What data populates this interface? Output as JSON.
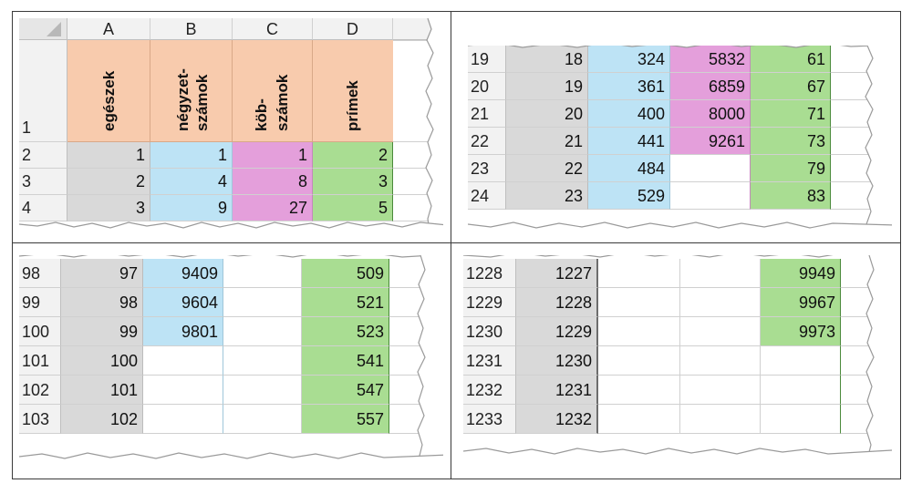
{
  "colors": {
    "header_orange": "#f8cbad",
    "gray": "#d9d9d9",
    "blue": "#bde3f5",
    "pink": "#e49fdb",
    "green": "#a9dd92"
  },
  "columns": [
    "A",
    "B",
    "C",
    "D"
  ],
  "headers": {
    "row": "1",
    "egeszek": "egészek",
    "negyzet_1": "négyzet-",
    "negyzet_2": "számok",
    "kob_1": "köb-",
    "kob_2": "számok",
    "primek": "prímek"
  },
  "panel1_rows": [
    {
      "row": "2",
      "a": "1",
      "b": "1",
      "c": "1",
      "d": "2"
    },
    {
      "row": "3",
      "a": "2",
      "b": "4",
      "c": "8",
      "d": "3"
    },
    {
      "row": "4",
      "a": "3",
      "b": "9",
      "c": "27",
      "d": "5"
    }
  ],
  "panel2_rows": [
    {
      "row": "19",
      "a": "18",
      "b": "324",
      "c": "5832",
      "d": "61"
    },
    {
      "row": "20",
      "a": "19",
      "b": "361",
      "c": "6859",
      "d": "67"
    },
    {
      "row": "21",
      "a": "20",
      "b": "400",
      "c": "8000",
      "d": "71"
    },
    {
      "row": "22",
      "a": "21",
      "b": "441",
      "c": "9261",
      "d": "73"
    },
    {
      "row": "23",
      "a": "22",
      "b": "484",
      "c": "",
      "d": "79"
    },
    {
      "row": "24",
      "a": "23",
      "b": "529",
      "c": "",
      "d": "83"
    }
  ],
  "panel3_rows": [
    {
      "row": "98",
      "a": "97",
      "b": "9409",
      "d": "509"
    },
    {
      "row": "99",
      "a": "98",
      "b": "9604",
      "d": "521"
    },
    {
      "row": "100",
      "a": "99",
      "b": "9801",
      "d": "523"
    },
    {
      "row": "101",
      "a": "100",
      "b": "",
      "d": "541"
    },
    {
      "row": "102",
      "a": "101",
      "b": "",
      "d": "547"
    },
    {
      "row": "103",
      "a": "102",
      "b": "",
      "d": "557"
    }
  ],
  "panel4_rows": [
    {
      "row": "1228",
      "a": "1227",
      "d": "9949"
    },
    {
      "row": "1229",
      "a": "1228",
      "d": "9967"
    },
    {
      "row": "1230",
      "a": "1229",
      "d": "9973"
    },
    {
      "row": "1231",
      "a": "1230",
      "d": ""
    },
    {
      "row": "1232",
      "a": "1231",
      "d": ""
    },
    {
      "row": "1233",
      "a": "1232",
      "d": ""
    }
  ]
}
